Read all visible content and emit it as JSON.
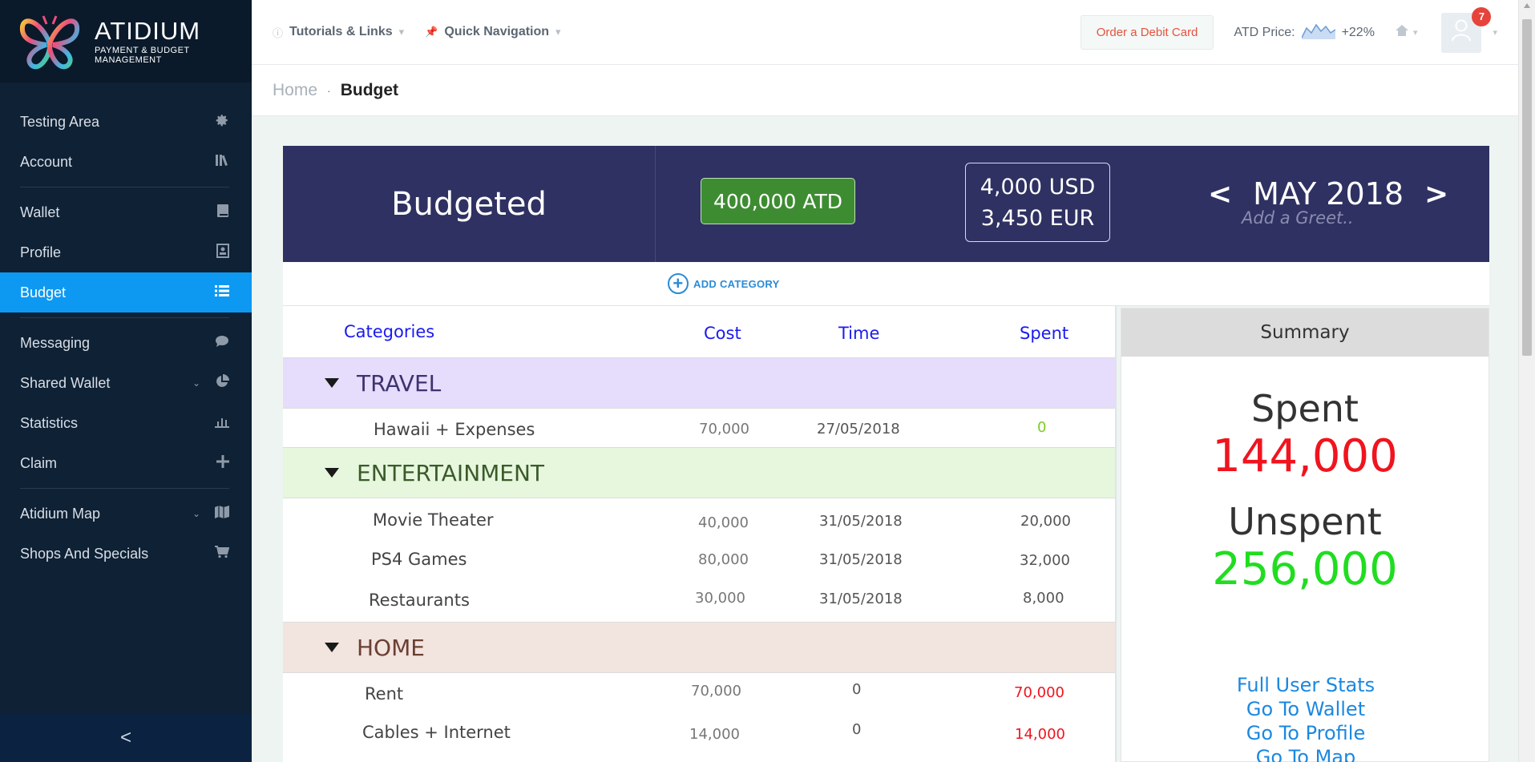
{
  "brand": {
    "title": "ATIDIUM",
    "subtitle": "PAYMENT & BUDGET MANAGEMENT"
  },
  "sidebar": {
    "items": [
      {
        "label": "Testing Area",
        "icon": "gear-icon"
      },
      {
        "label": "Account",
        "icon": "books-icon"
      },
      {
        "label": "Wallet",
        "icon": "book-icon"
      },
      {
        "label": "Profile",
        "icon": "id-card-icon"
      },
      {
        "label": "Budget",
        "icon": "list-icon",
        "active": true
      },
      {
        "label": "Messaging",
        "icon": "chat-icon"
      },
      {
        "label": "Shared Wallet",
        "icon": "pie-chart-icon",
        "expandable": true
      },
      {
        "label": "Statistics",
        "icon": "bar-chart-icon"
      },
      {
        "label": "Claim",
        "icon": "plus-icon"
      },
      {
        "label": "Atidium Map",
        "icon": "map-icon",
        "expandable": true
      },
      {
        "label": "Shops And Specials",
        "icon": "cart-icon"
      }
    ],
    "collapse_label": "<"
  },
  "topbar": {
    "tutorials": "Tutorials & Links",
    "quick_nav": "Quick Navigation",
    "debit_button": "Order a Debit Card",
    "atd_price_label": "ATD Price:",
    "atd_change": "+22%",
    "notifications": "7"
  },
  "breadcrumb": {
    "home": "Home",
    "sep": "·",
    "current": "Budget"
  },
  "budget": {
    "title": "Budgeted",
    "atd_amount": "400,000 ATD",
    "usd": "4,000 USD",
    "eur": "3,450 EUR",
    "prev": "<",
    "month": "MAY 2018",
    "next": ">",
    "greet_placeholder": "Add a Greet..",
    "add_category": "ADD CATEGORY"
  },
  "table": {
    "headers": {
      "categories": "Categories",
      "cost": "Cost",
      "time": "Time",
      "spent": "Spent"
    },
    "groups": [
      {
        "name": "TRAVEL",
        "rows": [
          {
            "name": "Hawaii + Expenses",
            "cost": "70,000",
            "time": "27/05/2018",
            "spent": "0"
          }
        ]
      },
      {
        "name": "ENTERTAINMENT",
        "rows": [
          {
            "name": "Movie Theater",
            "cost": "40,000",
            "time": "31/05/2018",
            "spent": "20,000"
          },
          {
            "name": "PS4 Games",
            "cost": "80,000",
            "time": "31/05/2018",
            "spent": "32,000"
          },
          {
            "name": "Restaurants",
            "cost": "30,000",
            "time": "31/05/2018",
            "spent": "8,000"
          }
        ]
      },
      {
        "name": "HOME",
        "rows": [
          {
            "name": "Rent",
            "cost": "70,000",
            "time": "0",
            "spent": "70,000"
          },
          {
            "name": "Cables + Internet",
            "cost": "14,000",
            "time": "0",
            "spent": "14,000"
          }
        ]
      }
    ]
  },
  "summary": {
    "title": "Summary",
    "spent_label": "Spent",
    "spent_value": "144,000",
    "unspent_label": "Unspent",
    "unspent_value": "256,000",
    "links": [
      "Full User Stats",
      "Go To Wallet",
      "Go To Profile",
      "Go To Map"
    ]
  },
  "colors": {
    "sidebar_bg": "#0e2135",
    "active": "#0d99f2",
    "header_bg": "#2f3162",
    "atd_green": "#3e8c32",
    "travel_bg": "#e6dcfb",
    "entertainment_bg": "#e6f7dd",
    "home_bg": "#f2e4df",
    "spent_red": "#f0141e",
    "unspent_green": "#20dd20",
    "link_blue": "#1b88e0"
  }
}
